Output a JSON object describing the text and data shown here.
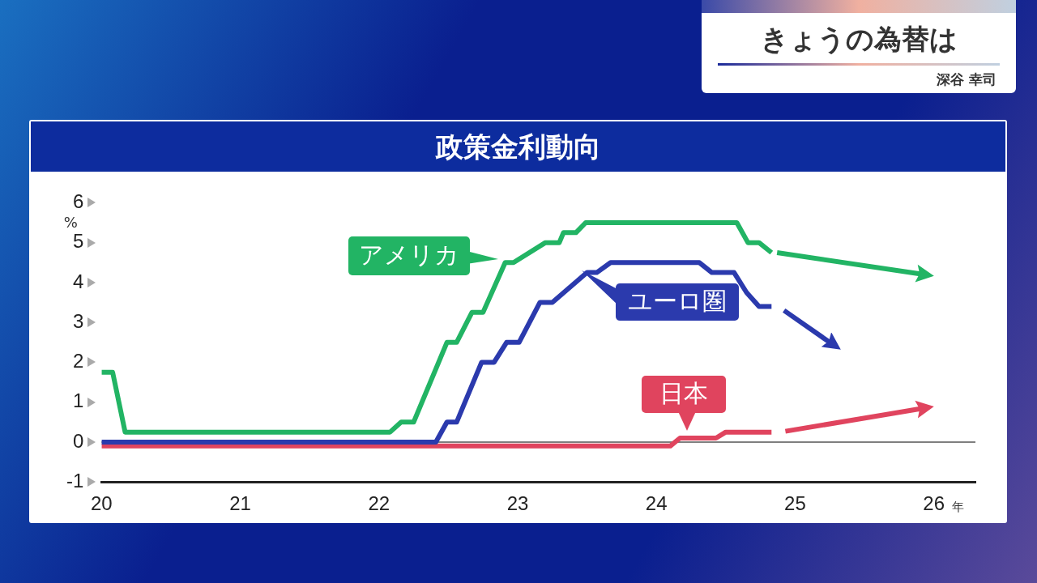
{
  "chart_data": {
    "type": "line",
    "title": "政策金利動向",
    "xlabel": "年",
    "ylabel": "%",
    "annotations": [
      "きょうの為替は",
      "深谷 幸司"
    ],
    "xlim": [
      20,
      26.3
    ],
    "xticks": [
      20,
      21,
      22,
      23,
      24,
      25,
      26
    ],
    "ylim": [
      -1,
      6
    ],
    "yticks": [
      -1,
      0,
      1,
      2,
      3,
      4,
      5,
      6
    ],
    "grid": false,
    "legend": "top right",
    "line_style": "solid",
    "ref_lines": [
      {
        "axis": "y",
        "value": 0,
        "color": "#555555"
      }
    ],
    "series": [
      {
        "name": "アメリカ",
        "color": "#22b464",
        "x": [
          20,
          20.08,
          20.17,
          22.08,
          22.16,
          22.25,
          22.49,
          22.56,
          22.67,
          22.75,
          22.91,
          22.97,
          23.2,
          23.3,
          23.33,
          23.42,
          23.49,
          24.58,
          24.66,
          24.74,
          24.83
        ],
        "values": [
          1.75,
          1.75,
          0.25,
          0.25,
          0.5,
          0.5,
          2.5,
          2.5,
          3.25,
          3.25,
          4.5,
          4.5,
          5.0,
          5.0,
          5.25,
          5.25,
          5.5,
          5.5,
          5.0,
          5.0,
          4.75
        ]
      },
      {
        "name": "ユーロ圏",
        "color": "#2b3aad",
        "x": [
          20,
          22.41,
          22.49,
          22.56,
          22.74,
          22.83,
          22.92,
          23.01,
          23.16,
          23.25,
          23.5,
          23.57,
          23.67,
          24.31,
          24.4,
          24.56,
          24.65,
          24.74,
          24.83
        ],
        "values": [
          0,
          0,
          0.5,
          0.5,
          2.0,
          2.0,
          2.5,
          2.5,
          3.5,
          3.5,
          4.25,
          4.25,
          4.5,
          4.5,
          4.25,
          4.25,
          3.75,
          3.4,
          3.4
        ]
      },
      {
        "name": "日本",
        "color": "#e0445e",
        "x": [
          20,
          24.1,
          24.17,
          24.43,
          24.5,
          24.83
        ],
        "values": [
          -0.1,
          -0.1,
          0.1,
          0.1,
          0.25,
          0.25
        ]
      },
      {
        "color": "#22b464",
        "x": [
          24.87,
          25.93
        ],
        "values": [
          4.75,
          4.2
        ]
      },
      {
        "color": "#2b3aad",
        "x": [
          24.92,
          25.27
        ],
        "values": [
          3.3,
          2.45
        ]
      },
      {
        "color": "#e0445e",
        "x": [
          24.93,
          25.93
        ],
        "values": [
          0.27,
          0.85
        ]
      }
    ]
  }
}
